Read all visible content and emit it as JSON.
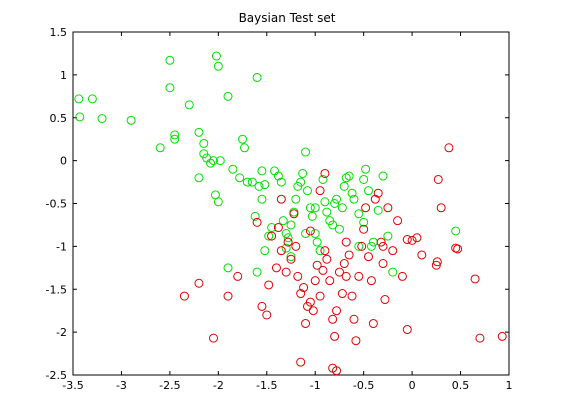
{
  "chart_data": {
    "type": "scatter",
    "title": "Baysian Test set",
    "xlabel": "",
    "ylabel": "",
    "xlim": [
      -3.5,
      1
    ],
    "ylim": [
      -2.5,
      1.5
    ],
    "xticks": [
      -3.5,
      -3,
      -2.5,
      -2,
      -1.5,
      -1,
      -0.5,
      0,
      0.5,
      1
    ],
    "xtick_labels": [
      "-3.5",
      "-3",
      "-2.5",
      "-2",
      "-1.5",
      "-1",
      "-0.5",
      "0",
      "0.5",
      "1"
    ],
    "yticks": [
      -2.5,
      -2,
      -1.5,
      -1,
      -0.5,
      0,
      0.5,
      1,
      1.5
    ],
    "ytick_labels": [
      "-2.5",
      "-2",
      "-1.5",
      "-1",
      "-0.5",
      "0",
      "0.5",
      "1",
      "1.5"
    ],
    "grid": false,
    "marker": "open-circle",
    "series": [
      {
        "color": "#00e000",
        "points": [
          [
            -3.44,
            0.72
          ],
          [
            -3.43,
            0.51
          ],
          [
            -3.3,
            0.72
          ],
          [
            -3.2,
            0.49
          ],
          [
            -2.9,
            0.47
          ],
          [
            -2.6,
            0.15
          ],
          [
            -2.5,
            1.17
          ],
          [
            -2.5,
            0.85
          ],
          [
            -2.45,
            0.3
          ],
          [
            -2.45,
            0.25
          ],
          [
            -2.3,
            0.65
          ],
          [
            -2.2,
            0.33
          ],
          [
            -2.15,
            0.2
          ],
          [
            -2.15,
            0.08
          ],
          [
            -2.12,
            0.03
          ],
          [
            -2.08,
            -0.03
          ],
          [
            -2.05,
            0.0
          ],
          [
            -2.2,
            -0.2
          ],
          [
            -2.03,
            -0.4
          ],
          [
            -2.0,
            -0.48
          ],
          [
            -2.02,
            1.22
          ],
          [
            -2.0,
            1.1
          ],
          [
            -1.98,
            0.0
          ],
          [
            -1.9,
            0.75
          ],
          [
            -1.85,
            -0.1
          ],
          [
            -1.78,
            -0.2
          ],
          [
            -1.75,
            0.25
          ],
          [
            -1.73,
            0.15
          ],
          [
            -1.7,
            -0.25
          ],
          [
            -1.65,
            -0.25
          ],
          [
            -1.62,
            -0.65
          ],
          [
            -1.55,
            -0.45
          ],
          [
            -1.52,
            -1.05
          ],
          [
            -1.6,
            0.97
          ],
          [
            -1.58,
            -0.3
          ],
          [
            -1.55,
            -0.12
          ],
          [
            -1.52,
            -0.28
          ],
          [
            -1.48,
            -0.88
          ],
          [
            -1.45,
            -0.78
          ],
          [
            -1.42,
            -0.12
          ],
          [
            -1.38,
            -0.18
          ],
          [
            -1.35,
            -0.25
          ],
          [
            -1.33,
            -0.7
          ],
          [
            -1.3,
            -0.85
          ],
          [
            -1.28,
            -0.9
          ],
          [
            -1.25,
            -0.75
          ],
          [
            -1.22,
            -0.6
          ],
          [
            -1.2,
            -0.45
          ],
          [
            -1.18,
            -0.3
          ],
          [
            -1.15,
            -0.25
          ],
          [
            -1.13,
            -0.15
          ],
          [
            -1.1,
            0.1
          ],
          [
            -1.08,
            -0.35
          ],
          [
            -1.05,
            -0.55
          ],
          [
            -1.03,
            -0.65
          ],
          [
            -1.0,
            -0.85
          ],
          [
            -0.98,
            -0.95
          ],
          [
            -0.95,
            -1.05
          ],
          [
            -0.92,
            -0.22
          ],
          [
            -0.9,
            -0.48
          ],
          [
            -0.88,
            -0.6
          ],
          [
            -0.85,
            -0.7
          ],
          [
            -0.82,
            -0.75
          ],
          [
            -0.8,
            -0.5
          ],
          [
            -0.78,
            -0.45
          ],
          [
            -0.75,
            -0.8
          ],
          [
            -0.72,
            -0.55
          ],
          [
            -0.7,
            -0.3
          ],
          [
            -0.68,
            -0.2
          ],
          [
            -0.65,
            -0.18
          ],
          [
            -0.62,
            -0.38
          ],
          [
            -0.6,
            -0.45
          ],
          [
            -0.55,
            -0.62
          ],
          [
            -0.5,
            -0.22
          ],
          [
            -0.48,
            -0.1
          ],
          [
            -0.45,
            -0.35
          ],
          [
            -0.42,
            -1.0
          ],
          [
            -0.4,
            -0.95
          ],
          [
            -0.35,
            -0.58
          ],
          [
            -0.3,
            -0.18
          ],
          [
            -0.25,
            -0.88
          ],
          [
            -1.25,
            -1.12
          ],
          [
            -1.3,
            -1.02
          ],
          [
            -1.6,
            -1.3
          ],
          [
            -1.9,
            -1.25
          ],
          [
            -0.2,
            -1.3
          ],
          [
            0.45,
            -0.82
          ],
          [
            -0.55,
            -1.0
          ],
          [
            -1.0,
            -0.55
          ],
          [
            -1.1,
            -0.85
          ],
          [
            -0.5,
            -0.72
          ]
        ]
      },
      {
        "color": "#e00000",
        "points": [
          [
            -2.35,
            -1.58
          ],
          [
            -2.2,
            -1.43
          ],
          [
            -2.05,
            -2.07
          ],
          [
            -1.9,
            -1.58
          ],
          [
            -1.8,
            -1.35
          ],
          [
            -1.6,
            -0.72
          ],
          [
            -1.55,
            -1.7
          ],
          [
            -1.5,
            -1.8
          ],
          [
            -1.48,
            -1.45
          ],
          [
            -1.45,
            -0.88
          ],
          [
            -1.4,
            -1.25
          ],
          [
            -1.38,
            -0.78
          ],
          [
            -1.35,
            -1.05
          ],
          [
            -1.3,
            -1.3
          ],
          [
            -1.28,
            -0.95
          ],
          [
            -1.25,
            -1.15
          ],
          [
            -1.22,
            -0.62
          ],
          [
            -1.2,
            -1.0
          ],
          [
            -1.18,
            -1.35
          ],
          [
            -1.15,
            -1.55
          ],
          [
            -1.12,
            -1.48
          ],
          [
            -1.1,
            -1.9
          ],
          [
            -1.08,
            -1.7
          ],
          [
            -1.05,
            -0.82
          ],
          [
            -1.02,
            -1.75
          ],
          [
            -1.0,
            -1.4
          ],
          [
            -0.98,
            -1.22
          ],
          [
            -0.95,
            -1.58
          ],
          [
            -0.92,
            -1.28
          ],
          [
            -0.9,
            -1.05
          ],
          [
            -0.88,
            -1.15
          ],
          [
            -0.85,
            -1.4
          ],
          [
            -0.82,
            -1.85
          ],
          [
            -0.8,
            -2.05
          ],
          [
            -0.78,
            -1.75
          ],
          [
            -0.75,
            -1.3
          ],
          [
            -0.72,
            -1.55
          ],
          [
            -0.7,
            -1.2
          ],
          [
            -0.68,
            -0.95
          ],
          [
            -0.65,
            -1.1
          ],
          [
            -0.62,
            -1.58
          ],
          [
            -0.6,
            -1.85
          ],
          [
            -0.58,
            -2.1
          ],
          [
            -0.55,
            -1.35
          ],
          [
            -0.52,
            -1.0
          ],
          [
            -0.5,
            -0.8
          ],
          [
            -0.48,
            -0.55
          ],
          [
            -0.45,
            -1.12
          ],
          [
            -0.42,
            -1.4
          ],
          [
            -0.4,
            -1.9
          ],
          [
            -0.38,
            -0.45
          ],
          [
            -0.35,
            -0.38
          ],
          [
            -0.32,
            -0.95
          ],
          [
            -0.3,
            -1.2
          ],
          [
            -0.28,
            -1.62
          ],
          [
            -0.25,
            -0.55
          ],
          [
            -0.2,
            -1.05
          ],
          [
            -0.15,
            -0.7
          ],
          [
            -0.1,
            -1.35
          ],
          [
            -0.05,
            -0.92
          ],
          [
            0.0,
            -0.93
          ],
          [
            0.05,
            -0.9
          ],
          [
            0.1,
            -1.1
          ],
          [
            0.25,
            -1.22
          ],
          [
            0.26,
            -1.18
          ],
          [
            0.27,
            -0.22
          ],
          [
            0.3,
            -0.55
          ],
          [
            0.38,
            0.15
          ],
          [
            0.45,
            -1.02
          ],
          [
            0.47,
            -1.03
          ],
          [
            0.65,
            -1.38
          ],
          [
            0.7,
            -2.07
          ],
          [
            0.93,
            -2.05
          ],
          [
            -0.05,
            -1.97
          ],
          [
            -1.15,
            -2.35
          ],
          [
            -0.82,
            -2.42
          ],
          [
            -0.78,
            -2.45
          ],
          [
            -0.68,
            -1.35
          ],
          [
            -0.3,
            -1.0
          ],
          [
            -0.95,
            -0.35
          ],
          [
            -0.9,
            -0.15
          ],
          [
            -1.05,
            -1.65
          ],
          [
            -1.35,
            -0.45
          ]
        ]
      }
    ]
  }
}
